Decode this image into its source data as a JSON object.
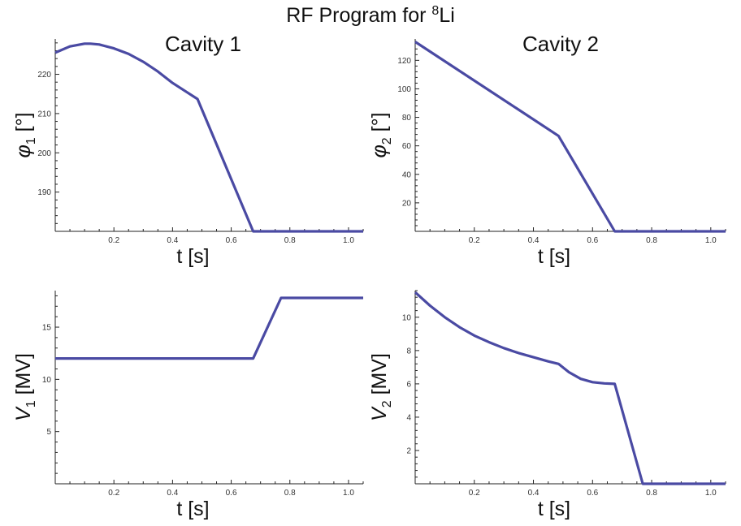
{
  "title": {
    "main": "RF Program for ",
    "sup": "8",
    "tail": "Li"
  },
  "chart_data": [
    {
      "id": "phi1",
      "type": "line",
      "column_title": "Cavity 1",
      "xlabel": "t [s]",
      "ylabel": {
        "sym": "φ",
        "sub": "1",
        "unit": " [°]"
      },
      "xlim": [
        0,
        1.05
      ],
      "ylim": [
        180,
        229
      ],
      "xticks": [
        0.2,
        0.4,
        0.6,
        0.8,
        1.0
      ],
      "xtick_labels": [
        "0.2",
        "0.4",
        "0.6",
        "0.8",
        "1.0"
      ],
      "yticks": [
        190,
        200,
        210,
        220
      ],
      "ytick_labels": [
        "190",
        "200",
        "210",
        "220"
      ],
      "series": [
        {
          "name": "phi1",
          "x": [
            0,
            0.05,
            0.1,
            0.12,
            0.15,
            0.2,
            0.25,
            0.3,
            0.35,
            0.4,
            0.45,
            0.485,
            0.675,
            1.05
          ],
          "y": [
            225.5,
            227.1,
            227.8,
            227.8,
            227.6,
            226.6,
            225.2,
            223.2,
            220.7,
            217.8,
            215.4,
            213.7,
            180,
            180
          ]
        }
      ]
    },
    {
      "id": "phi2",
      "type": "line",
      "column_title": "Cavity 2",
      "xlabel": "t [s]",
      "ylabel": {
        "sym": "φ",
        "sub": "2",
        "unit": " [°]"
      },
      "xlim": [
        0,
        1.05
      ],
      "ylim": [
        0,
        135
      ],
      "xticks": [
        0.2,
        0.4,
        0.6,
        0.8,
        1.0
      ],
      "xtick_labels": [
        "0.2",
        "0.4",
        "0.6",
        "0.8",
        "1.0"
      ],
      "yticks": [
        20,
        40,
        60,
        80,
        100,
        120
      ],
      "ytick_labels": [
        "20",
        "40",
        "60",
        "80",
        "100",
        "120"
      ],
      "series": [
        {
          "name": "phi2",
          "x": [
            0,
            0.485,
            0.675,
            1.05
          ],
          "y": [
            133,
            67,
            0,
            0
          ]
        }
      ]
    },
    {
      "id": "v1",
      "type": "line",
      "column_title": "",
      "xlabel": "t [s]",
      "ylabel": {
        "sym": "V",
        "sub": "1",
        "unit": " [MV]"
      },
      "xlim": [
        0,
        1.05
      ],
      "ylim": [
        0,
        18.5
      ],
      "xticks": [
        0.2,
        0.4,
        0.6,
        0.8,
        1.0
      ],
      "xtick_labels": [
        "0.2",
        "0.4",
        "0.6",
        "0.8",
        "1.0"
      ],
      "yticks": [
        5,
        10,
        15
      ],
      "ytick_labels": [
        "5",
        "10",
        "15"
      ],
      "series": [
        {
          "name": "V1",
          "x": [
            0,
            0.675,
            0.77,
            1.05
          ],
          "y": [
            12,
            12,
            17.8,
            17.8
          ]
        }
      ]
    },
    {
      "id": "v2",
      "type": "line",
      "column_title": "",
      "xlabel": "t [s]",
      "ylabel": {
        "sym": "V",
        "sub": "2",
        "unit": " [MV]"
      },
      "xlim": [
        0,
        1.05
      ],
      "ylim": [
        0,
        11.6
      ],
      "xticks": [
        0.2,
        0.4,
        0.6,
        0.8,
        1.0
      ],
      "xtick_labels": [
        "0.2",
        "0.4",
        "0.6",
        "0.8",
        "1.0"
      ],
      "yticks": [
        2,
        4,
        6,
        8,
        10
      ],
      "ytick_labels": [
        "2",
        "4",
        "6",
        "8",
        "10"
      ],
      "series": [
        {
          "name": "V2",
          "x": [
            0,
            0.05,
            0.1,
            0.15,
            0.2,
            0.25,
            0.3,
            0.35,
            0.4,
            0.45,
            0.485,
            0.52,
            0.56,
            0.6,
            0.64,
            0.675,
            0.77,
            1.05
          ],
          "y": [
            11.5,
            10.7,
            10.0,
            9.4,
            8.9,
            8.5,
            8.15,
            7.85,
            7.6,
            7.35,
            7.2,
            6.7,
            6.3,
            6.1,
            6.03,
            6.0,
            0,
            0
          ]
        }
      ]
    }
  ],
  "colors": {
    "line": "#4a4aa3",
    "axis": "#222222"
  }
}
